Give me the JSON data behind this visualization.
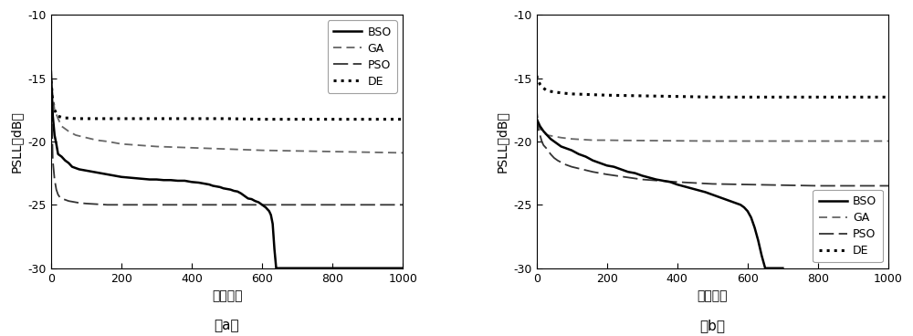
{
  "xlim": [
    0,
    1000
  ],
  "ylim": [
    -30,
    -10
  ],
  "yticks": [
    -30,
    -25,
    -20,
    -15,
    -10
  ],
  "xticks": [
    0,
    200,
    400,
    600,
    800,
    1000
  ],
  "xlabel_cn": "辭代步数",
  "ylabel_cn": "PSLL（dB）",
  "subtitle_a": "（a）",
  "subtitle_b": "（b）",
  "background_color": "#ffffff",
  "plot_a": {
    "BSO": {
      "x": [
        0,
        5,
        10,
        15,
        20,
        30,
        40,
        50,
        60,
        70,
        80,
        90,
        100,
        120,
        140,
        160,
        180,
        200,
        220,
        240,
        260,
        280,
        300,
        320,
        340,
        360,
        380,
        400,
        420,
        430,
        440,
        450,
        460,
        470,
        480,
        490,
        500,
        510,
        520,
        530,
        540,
        550,
        555,
        560,
        570,
        580,
        590,
        600,
        610,
        620,
        625,
        630,
        635,
        640,
        645,
        650,
        655,
        660,
        665,
        670,
        680,
        700,
        800,
        1000
      ],
      "y": [
        -14.5,
        -18.0,
        -19.5,
        -20.2,
        -21.0,
        -21.2,
        -21.5,
        -21.7,
        -22.0,
        -22.1,
        -22.2,
        -22.25,
        -22.3,
        -22.4,
        -22.5,
        -22.6,
        -22.7,
        -22.8,
        -22.85,
        -22.9,
        -22.95,
        -23.0,
        -23.0,
        -23.05,
        -23.05,
        -23.1,
        -23.1,
        -23.2,
        -23.25,
        -23.3,
        -23.35,
        -23.4,
        -23.5,
        -23.55,
        -23.6,
        -23.7,
        -23.75,
        -23.8,
        -23.9,
        -23.95,
        -24.1,
        -24.3,
        -24.4,
        -24.5,
        -24.55,
        -24.7,
        -24.8,
        -25.0,
        -25.2,
        -25.5,
        -25.8,
        -26.5,
        -28.5,
        -30.0,
        -30.0,
        -30.0,
        -30.0,
        -30.0,
        -30.0,
        -30.0,
        -30.0,
        -30.0,
        -30.0,
        -30.0
      ]
    },
    "GA": {
      "x": [
        0,
        5,
        10,
        20,
        30,
        50,
        70,
        100,
        130,
        160,
        200,
        250,
        300,
        350,
        400,
        500,
        600,
        700,
        800,
        900,
        1000
      ],
      "y": [
        -14.8,
        -16.5,
        -17.5,
        -18.2,
        -18.8,
        -19.2,
        -19.5,
        -19.7,
        -19.9,
        -20.0,
        -20.2,
        -20.3,
        -20.4,
        -20.45,
        -20.5,
        -20.6,
        -20.7,
        -20.75,
        -20.8,
        -20.85,
        -20.9
      ]
    },
    "PSO": {
      "x": [
        0,
        5,
        10,
        15,
        20,
        25,
        30,
        40,
        50,
        60,
        70,
        80,
        100,
        130,
        160,
        200,
        250,
        300,
        400,
        500,
        600,
        700,
        800,
        900,
        1000
      ],
      "y": [
        -15.5,
        -21.5,
        -23.0,
        -23.8,
        -24.2,
        -24.4,
        -24.5,
        -24.6,
        -24.7,
        -24.75,
        -24.8,
        -24.85,
        -24.9,
        -24.95,
        -25.0,
        -25.0,
        -25.0,
        -25.0,
        -25.0,
        -25.0,
        -25.0,
        -25.0,
        -25.0,
        -25.0,
        -25.0
      ]
    },
    "DE": {
      "x": [
        0,
        5,
        10,
        15,
        20,
        30,
        40,
        50,
        70,
        100,
        150,
        200,
        300,
        400,
        500,
        600,
        700,
        800,
        900,
        1000
      ],
      "y": [
        -15.2,
        -16.8,
        -17.5,
        -17.8,
        -18.0,
        -18.1,
        -18.15,
        -18.15,
        -18.2,
        -18.2,
        -18.2,
        -18.2,
        -18.2,
        -18.2,
        -18.2,
        -18.25,
        -18.25,
        -18.25,
        -18.25,
        -18.25
      ]
    }
  },
  "plot_b": {
    "BSO": {
      "x": [
        0,
        5,
        10,
        15,
        20,
        30,
        40,
        50,
        60,
        70,
        80,
        100,
        120,
        140,
        160,
        180,
        200,
        220,
        240,
        260,
        280,
        300,
        320,
        340,
        360,
        380,
        400,
        420,
        440,
        460,
        480,
        500,
        510,
        520,
        530,
        540,
        550,
        560,
        570,
        580,
        590,
        600,
        610,
        620,
        630,
        640,
        645,
        650,
        655,
        660,
        670,
        680,
        700
      ],
      "y": [
        -18.2,
        -18.5,
        -18.8,
        -19.0,
        -19.2,
        -19.5,
        -19.8,
        -20.0,
        -20.2,
        -20.4,
        -20.5,
        -20.7,
        -21.0,
        -21.2,
        -21.5,
        -21.7,
        -21.9,
        -22.0,
        -22.2,
        -22.4,
        -22.5,
        -22.7,
        -22.85,
        -23.0,
        -23.1,
        -23.2,
        -23.4,
        -23.55,
        -23.7,
        -23.85,
        -24.0,
        -24.2,
        -24.3,
        -24.4,
        -24.5,
        -24.6,
        -24.7,
        -24.8,
        -24.9,
        -25.0,
        -25.2,
        -25.5,
        -26.0,
        -26.8,
        -27.8,
        -29.0,
        -29.5,
        -30.0,
        -30.0,
        -30.0,
        -30.0,
        -30.0,
        -30.0
      ]
    },
    "GA": {
      "x": [
        0,
        5,
        10,
        20,
        30,
        50,
        70,
        100,
        130,
        160,
        200,
        250,
        300,
        400,
        500,
        600,
        700,
        800,
        900,
        1000
      ],
      "y": [
        -17.5,
        -18.5,
        -19.0,
        -19.3,
        -19.5,
        -19.6,
        -19.7,
        -19.8,
        -19.85,
        -19.9,
        -19.9,
        -19.92,
        -19.93,
        -19.95,
        -19.97,
        -19.97,
        -19.97,
        -19.97,
        -19.97,
        -19.97
      ]
    },
    "PSO": {
      "x": [
        0,
        5,
        10,
        15,
        20,
        30,
        40,
        50,
        60,
        80,
        100,
        130,
        160,
        200,
        250,
        300,
        400,
        500,
        600,
        700,
        800,
        900,
        1000
      ],
      "y": [
        -18.0,
        -19.0,
        -19.5,
        -20.0,
        -20.3,
        -20.6,
        -21.0,
        -21.3,
        -21.5,
        -21.8,
        -22.0,
        -22.2,
        -22.4,
        -22.6,
        -22.8,
        -23.0,
        -23.2,
        -23.35,
        -23.4,
        -23.45,
        -23.5,
        -23.5,
        -23.5
      ]
    },
    "DE": {
      "x": [
        0,
        5,
        10,
        15,
        20,
        30,
        50,
        80,
        100,
        150,
        200,
        300,
        400,
        500,
        600,
        700,
        800,
        900,
        1000
      ],
      "y": [
        -14.8,
        -15.2,
        -15.5,
        -15.7,
        -15.8,
        -16.0,
        -16.1,
        -16.2,
        -16.25,
        -16.3,
        -16.35,
        -16.4,
        -16.45,
        -16.5,
        -16.5,
        -16.5,
        -16.5,
        -16.5,
        -16.5
      ]
    }
  },
  "line_styles": {
    "BSO": {
      "linestyle": "-",
      "linewidth": 1.8,
      "color": "#000000",
      "dashes": null
    },
    "GA": {
      "linestyle": "--",
      "linewidth": 1.3,
      "color": "#666666",
      "dashes": [
        5,
        3
      ]
    },
    "PSO": {
      "linestyle": "--",
      "linewidth": 1.3,
      "color": "#333333",
      "dashes": [
        9,
        3
      ]
    },
    "DE": {
      "linestyle": ":",
      "linewidth": 2.2,
      "color": "#000000",
      "dashes": null
    }
  }
}
